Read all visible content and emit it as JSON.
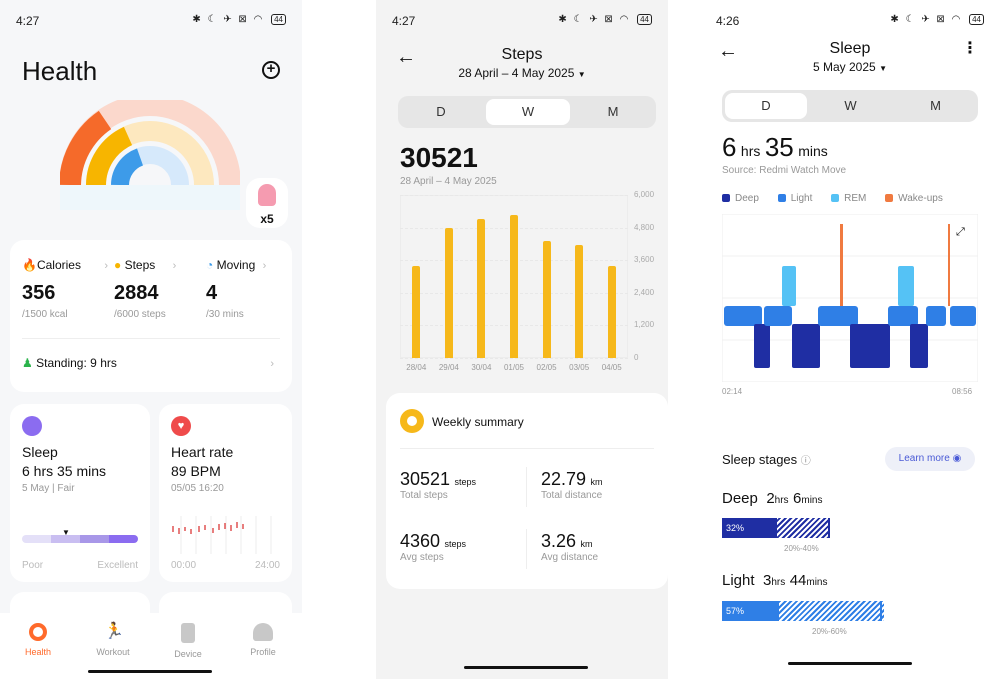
{
  "status": {
    "time1": "4:27",
    "time2": "4:27",
    "time3": "4:26",
    "battery": "44"
  },
  "health": {
    "title": "Health",
    "badge_count": "x5",
    "stats": [
      {
        "label": "Calories",
        "value": "356",
        "goal": "/1500 kcal",
        "color": "#ff6a2b"
      },
      {
        "label": "Steps",
        "value": "2884",
        "goal": "/6000 steps",
        "color": "#f7b500"
      },
      {
        "label": "Moving",
        "value": "4",
        "goal": "/30 mins",
        "color": "#3d9be9"
      }
    ],
    "standing_label": "Standing:",
    "standing_value": "9",
    "standing_unit": "hrs",
    "sleep_card": {
      "title": "Sleep",
      "value": "6 hrs 35 mins",
      "sub": "5 May | Fair",
      "left": "Poor",
      "right": "Excellent"
    },
    "heart_card": {
      "title": "Heart rate",
      "value": "89 BPM",
      "sub": "05/05 16:20",
      "left": "00:00",
      "right": "24:00"
    },
    "tabs": [
      "Health",
      "Workout",
      "Device",
      "Profile"
    ]
  },
  "steps": {
    "title": "Steps",
    "range": "28 April – 4 May 2025",
    "segments": [
      "D",
      "W",
      "M"
    ],
    "total": "30521",
    "total_range": "28 April – 4 May 2025",
    "summary_title": "Weekly summary",
    "summary": [
      {
        "value": "30521",
        "unit": "steps",
        "label": "Total steps"
      },
      {
        "value": "22.79",
        "unit": "km",
        "label": "Total distance"
      },
      {
        "value": "4360",
        "unit": "steps",
        "label": "Avg steps"
      },
      {
        "value": "3.26",
        "unit": "km",
        "label": "Avg distance"
      }
    ],
    "chart_data": {
      "type": "bar",
      "categories": [
        "28/04",
        "29/04",
        "30/04",
        "01/05",
        "02/05",
        "03/05",
        "04/05"
      ],
      "values": [
        3400,
        4800,
        5100,
        5250,
        4300,
        4150,
        3400
      ],
      "yticks": [
        "6,000",
        "4,800",
        "3,600",
        "2,400",
        "1,200",
        "0"
      ],
      "ylim": [
        0,
        6000
      ],
      "color": "#f6b81a"
    }
  },
  "sleep": {
    "title": "Sleep",
    "date": "5 May 2025",
    "segments": [
      "D",
      "W",
      "M"
    ],
    "hours": "6",
    "hours_unit": "hrs",
    "mins": "35",
    "mins_unit": "mins",
    "source": "Source: Redmi Watch Move",
    "legend": [
      {
        "label": "Deep",
        "color": "#1f2ea3"
      },
      {
        "label": "Light",
        "color": "#2f7fe6"
      },
      {
        "label": "REM",
        "color": "#55c2f5"
      },
      {
        "label": "Wake-ups",
        "color": "#f07a40"
      }
    ],
    "start_time": "02:14",
    "end_time": "08:56",
    "stages_title": "Sleep stages",
    "learn_more": "Learn more",
    "stages": [
      {
        "name": "Deep",
        "h": "2",
        "hu": "hrs",
        "m": "6",
        "mu": "mins",
        "pct": "32%",
        "fill": 0.32,
        "range": "20%-40%",
        "color": "#1f2ea3"
      },
      {
        "name": "Light",
        "h": "3",
        "hu": "hrs",
        "m": "44",
        "mu": "mins",
        "pct": "57%",
        "fill": 0.57,
        "range": "20%-60%",
        "color": "#2f7fe6"
      }
    ]
  }
}
